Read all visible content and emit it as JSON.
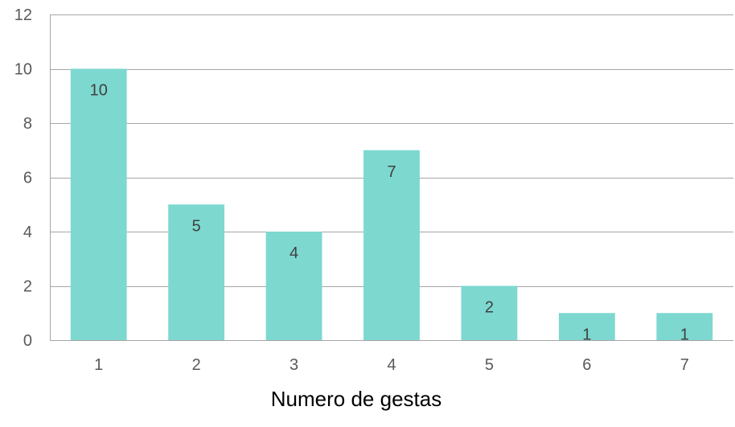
{
  "chart_data": {
    "type": "bar",
    "categories": [
      "1",
      "2",
      "3",
      "4",
      "5",
      "6",
      "7"
    ],
    "values": [
      10,
      5,
      4,
      7,
      2,
      1,
      1
    ],
    "data_labels": [
      "10",
      "5",
      "4",
      "7",
      "2",
      "1",
      "1"
    ],
    "title": "",
    "xlabel": "Numero de gestas",
    "ylabel": "",
    "ylim": [
      0,
      12
    ],
    "yticks": [
      0,
      2,
      4,
      6,
      8,
      10,
      12
    ],
    "ytick_labels": [
      "0",
      "2",
      "4",
      "6",
      "8",
      "10",
      "12"
    ],
    "grid": true,
    "legend": "none",
    "colors": {
      "bar": "#7dd8d0",
      "grid": "#a6a6a6",
      "axis": "#a6a6a6"
    }
  }
}
